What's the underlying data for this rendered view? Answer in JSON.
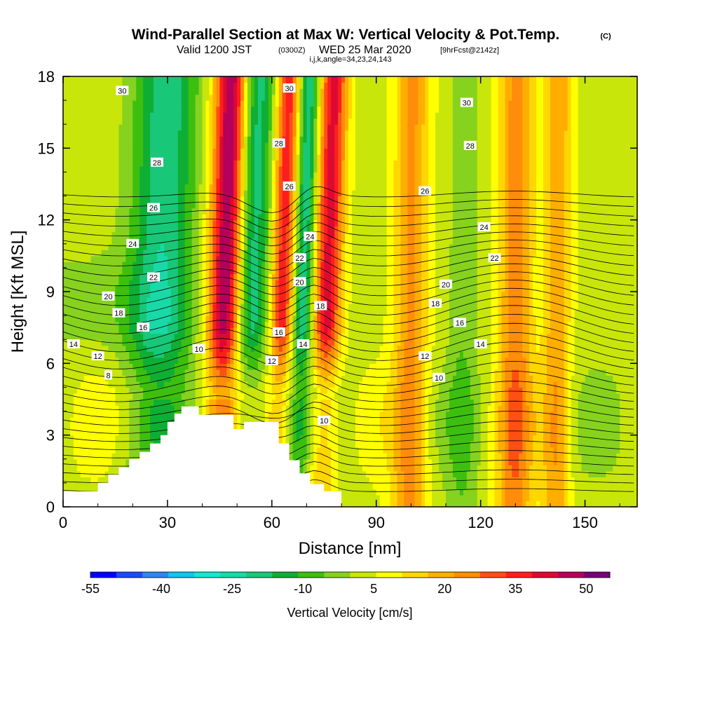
{
  "title": {
    "main": "Wind-Parallel Section at Max W: Vertical Velocity & Pot.Temp.",
    "copyright": "(C)",
    "valid": "Valid 1200 JST",
    "utc": "(0300Z)",
    "date": "WED 25 Mar 2020",
    "fcst": "[9hrFcst@2142z]",
    "indices": "i,j,k,angle=34,23,24,143"
  },
  "colors": {
    "palette": [
      "#0000ff",
      "#1a4df2",
      "#2a86f0",
      "#14c3f0",
      "#16e6d2",
      "#19d9a8",
      "#18c878",
      "#0fae34",
      "#3dbf0f",
      "#86d21e",
      "#c8e60a",
      "#ffff00",
      "#ffd700",
      "#ffae00",
      "#ff8c0a",
      "#ff5014",
      "#ff1e1e",
      "#dc0a32",
      "#b4005a",
      "#780078"
    ],
    "terrain": "#ffffff",
    "contour": "#000000"
  },
  "chart_data": {
    "type": "contour",
    "xlabel": "Distance [nm]",
    "ylabel": "Height [Kft MSL]",
    "xlim": [
      0,
      165
    ],
    "ylim": [
      0,
      18
    ],
    "x_ticks": [
      "0",
      "30",
      "60",
      "90",
      "120",
      "150"
    ],
    "y_ticks": [
      "0",
      "3",
      "6",
      "9",
      "12",
      "15",
      "18"
    ],
    "colorbar": {
      "label": "Vertical Velocity [cm/s]",
      "min": -55,
      "max": 55,
      "tick_labels": [
        "-55",
        "-40",
        "-25",
        "-10",
        "5",
        "20",
        "35",
        "50"
      ],
      "tick_values": [
        -55,
        -40,
        -25,
        -10,
        5,
        20,
        35,
        50
      ]
    },
    "velocity_features": [
      {
        "x": 47,
        "width": 5,
        "amp": 55
      },
      {
        "x": 53,
        "width": 6,
        "amp": -28
      },
      {
        "x": 63,
        "width": 3.5,
        "amp": 35
      },
      {
        "x": 69,
        "width": 3,
        "amp": -26
      },
      {
        "x": 76,
        "width": 4,
        "amp": 38
      },
      {
        "x": 28,
        "width": 9,
        "amp": -24
      },
      {
        "x": 100,
        "width": 5,
        "amp": 20
      },
      {
        "x": 115,
        "width": 4,
        "amp": -7
      },
      {
        "x": 130,
        "width": 5,
        "amp": 22
      },
      {
        "x": 142,
        "width": 4,
        "amp": 18
      }
    ],
    "terrain_profile": [
      [
        0,
        0.65
      ],
      [
        10,
        0.65
      ],
      [
        10,
        1.0
      ],
      [
        13,
        1.0
      ],
      [
        13,
        1.35
      ],
      [
        16,
        1.35
      ],
      [
        16,
        1.65
      ],
      [
        19,
        1.65
      ],
      [
        19,
        2.0
      ],
      [
        22,
        2.0
      ],
      [
        22,
        2.3
      ],
      [
        25,
        2.3
      ],
      [
        25,
        2.65
      ],
      [
        28,
        2.65
      ],
      [
        28,
        3.0
      ],
      [
        30,
        3.0
      ],
      [
        30,
        3.55
      ],
      [
        32,
        3.55
      ],
      [
        32,
        3.9
      ],
      [
        34,
        3.9
      ],
      [
        34,
        4.2
      ],
      [
        39,
        4.2
      ],
      [
        39,
        3.85
      ],
      [
        49,
        3.85
      ],
      [
        49,
        3.25
      ],
      [
        52,
        3.25
      ],
      [
        52,
        3.55
      ],
      [
        62,
        3.55
      ],
      [
        62,
        2.65
      ],
      [
        65,
        2.65
      ],
      [
        65,
        1.95
      ],
      [
        68,
        1.95
      ],
      [
        68,
        1.4
      ],
      [
        71,
        1.4
      ],
      [
        71,
        0.95
      ],
      [
        75,
        0.95
      ],
      [
        75,
        0.65
      ],
      [
        80,
        0.65
      ],
      [
        80,
        0
      ]
    ],
    "contour_labels": [
      {
        "text": "30",
        "x": 17,
        "y": 17.4
      },
      {
        "text": "30",
        "x": 65,
        "y": 17.5
      },
      {
        "text": "30",
        "x": 116,
        "y": 16.9
      },
      {
        "text": "28",
        "x": 27,
        "y": 14.4
      },
      {
        "text": "28",
        "x": 62,
        "y": 15.2
      },
      {
        "text": "28",
        "x": 117,
        "y": 15.1
      },
      {
        "text": "26",
        "x": 26,
        "y": 12.5
      },
      {
        "text": "26",
        "x": 65,
        "y": 13.4
      },
      {
        "text": "26",
        "x": 104,
        "y": 13.2
      },
      {
        "text": "24",
        "x": 20,
        "y": 11.0
      },
      {
        "text": "24",
        "x": 71,
        "y": 11.3
      },
      {
        "text": "24",
        "x": 121,
        "y": 11.7
      },
      {
        "text": "22",
        "x": 26,
        "y": 9.6
      },
      {
        "text": "22",
        "x": 68,
        "y": 10.4
      },
      {
        "text": "22",
        "x": 124,
        "y": 10.4
      },
      {
        "text": "20",
        "x": 13,
        "y": 8.8
      },
      {
        "text": "20",
        "x": 68,
        "y": 9.4
      },
      {
        "text": "20",
        "x": 110,
        "y": 9.3
      },
      {
        "text": "18",
        "x": 16,
        "y": 8.1
      },
      {
        "text": "18",
        "x": 74,
        "y": 8.4
      },
      {
        "text": "18",
        "x": 107,
        "y": 8.5
      },
      {
        "text": "16",
        "x": 23,
        "y": 7.5
      },
      {
        "text": "16",
        "x": 62,
        "y": 7.3
      },
      {
        "text": "16",
        "x": 114,
        "y": 7.7
      },
      {
        "text": "14",
        "x": 3,
        "y": 6.8
      },
      {
        "text": "14",
        "x": 69,
        "y": 6.8
      },
      {
        "text": "14",
        "x": 120,
        "y": 6.8
      },
      {
        "text": "12",
        "x": 10,
        "y": 6.3
      },
      {
        "text": "12",
        "x": 60,
        "y": 6.1
      },
      {
        "text": "12",
        "x": 104,
        "y": 6.3
      },
      {
        "text": "10",
        "x": 39,
        "y": 6.6
      },
      {
        "text": "10",
        "x": 108,
        "y": 5.4
      },
      {
        "text": "10",
        "x": 75,
        "y": 3.6
      },
      {
        "text": "8",
        "x": 13,
        "y": 5.5
      }
    ]
  }
}
